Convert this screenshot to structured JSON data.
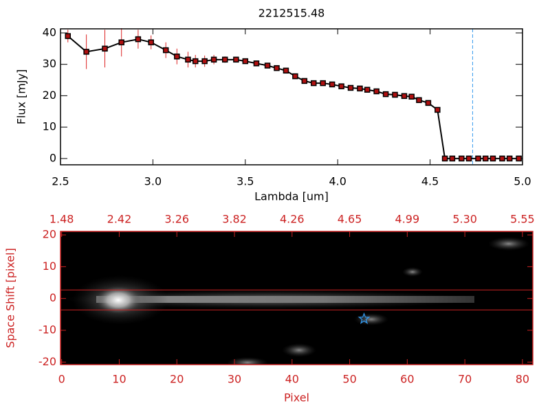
{
  "chart_data": [
    {
      "type": "line",
      "title": "2212515.48",
      "xlabel": "Lambda [um]",
      "ylabel": "Flux [mJy]",
      "x": [
        2.54,
        2.64,
        2.74,
        2.83,
        2.92,
        2.99,
        3.07,
        3.13,
        3.19,
        3.23,
        3.28,
        3.33,
        3.39,
        3.45,
        3.5,
        3.56,
        3.62,
        3.67,
        3.72,
        3.77,
        3.82,
        3.87,
        3.92,
        3.97,
        4.02,
        4.07,
        4.12,
        4.16,
        4.21,
        4.26,
        4.31,
        4.36,
        4.4,
        4.44,
        4.49,
        4.54,
        4.58,
        4.62,
        4.67,
        4.71,
        4.76,
        4.8,
        4.84,
        4.89,
        4.93,
        4.98
      ],
      "values": [
        39,
        34,
        35,
        37,
        38,
        37,
        34.5,
        32.5,
        31.5,
        31,
        31,
        31.5,
        31.5,
        31.5,
        31,
        30.3,
        29.6,
        28.8,
        28,
        26.2,
        24.7,
        24,
        24,
        23.6,
        23,
        22.5,
        22.3,
        21.9,
        21.4,
        20.5,
        20.3,
        19.9,
        19.7,
        18.6,
        17.7,
        15.5,
        0,
        0,
        0,
        0,
        0,
        0,
        0,
        0,
        0,
        0
      ],
      "errors": [
        2,
        5.5,
        6,
        4.5,
        3,
        2.2,
        2.5,
        2.5,
        2.5,
        2,
        1.8,
        1.5,
        1,
        0.8,
        0.5,
        0.5,
        0.5,
        0.5,
        0.5,
        0.5,
        0.5,
        0.5,
        0.5,
        0.5,
        0.5,
        0.5,
        0.5,
        0.5,
        0.5,
        0.5,
        0.5,
        0.5,
        0.5,
        0.5,
        0.5,
        0.5,
        0.5,
        0.5,
        0.5,
        0.5,
        0.5,
        0.5,
        0.5,
        0.5,
        0.5,
        0.5
      ],
      "color": "#000000",
      "marker_color": "#b01010",
      "error_color": "#dd2222",
      "xlim": [
        2.5,
        5.0
      ],
      "ylim": [
        -2,
        41.3
      ],
      "xticks": [
        2.5,
        {
          "value": 3,
          "label": "3.0"
        },
        3.5,
        {
          "value": 4,
          "label": "4.0"
        },
        4.5,
        {
          "value": 5,
          "label": "5.0"
        }
      ],
      "yticks": [
        0,
        10,
        20,
        30,
        40
      ],
      "vline": 4.73,
      "vline_color": "#3399ee"
    },
    {
      "type": "image",
      "xlabel": "Pixel",
      "ylabel": "Space Shift [pixel]",
      "color": "#cc2222",
      "xlim": [
        -0.2,
        81.8
      ],
      "ylim": [
        -20.8,
        21.1
      ],
      "xticks": [
        0,
        10,
        20,
        30,
        40,
        50,
        60,
        70,
        80
      ],
      "x2ticks": [
        {
          "value": 0,
          "label": "1.48"
        },
        {
          "value": 10,
          "label": "2.42"
        },
        {
          "value": 20,
          "label": "3.26"
        },
        {
          "value": 30,
          "label": "3.82"
        },
        {
          "value": 40,
          "label": "4.26"
        },
        {
          "value": 50,
          "label": "4.65"
        },
        {
          "value": 60,
          "label": "4.99"
        },
        {
          "value": 70,
          "label": "5.30"
        },
        {
          "value": 80,
          "label": "5.55"
        }
      ],
      "yticks": [
        -20,
        -10,
        0,
        10,
        20
      ],
      "hlines": [
        2.7,
        -3.6
      ],
      "marker": {
        "x": 52.5,
        "y": -6.4,
        "color": "#3399ee"
      }
    }
  ]
}
